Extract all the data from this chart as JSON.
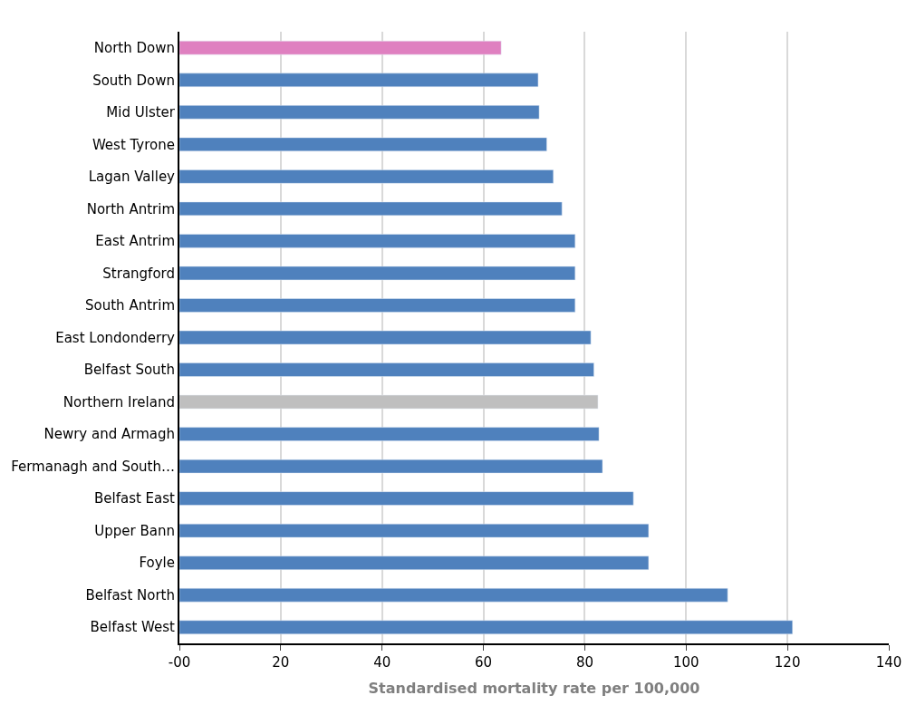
{
  "chart_data": {
    "type": "bar",
    "orientation": "horizontal",
    "xlabel": "Standardised mortality rate per 100,000",
    "categories": [
      "North Down",
      "South Down",
      "Mid Ulster",
      "West Tyrone",
      "Lagan Valley",
      "North Antrim",
      "East Antrim",
      "Strangford",
      "South Antrim",
      "East Londonderry",
      "Belfast South",
      "Northern Ireland",
      "Newry and Armagh",
      "Fermanagh and South…",
      "Belfast East",
      "Upper Bann",
      "Foyle",
      "Belfast North",
      "Belfast West"
    ],
    "values": [
      63.5,
      70.8,
      71.0,
      72.5,
      73.8,
      75.5,
      78.1,
      78.1,
      78.1,
      81.2,
      81.8,
      82.6,
      82.8,
      83.5,
      89.6,
      92.6,
      92.6,
      108.2,
      121.0
    ],
    "colors": [
      "#df80c0",
      "#4f81bd",
      "#4f81bd",
      "#4f81bd",
      "#4f81bd",
      "#4f81bd",
      "#4f81bd",
      "#4f81bd",
      "#4f81bd",
      "#4f81bd",
      "#4f81bd",
      "#bfbfbf",
      "#4f81bd",
      "#4f81bd",
      "#4f81bd",
      "#4f81bd",
      "#4f81bd",
      "#4f81bd",
      "#4f81bd"
    ],
    "xlim": [
      0,
      140
    ],
    "xticks": [
      {
        "value": 0,
        "label": "-00"
      },
      20,
      40,
      60,
      80,
      100,
      120,
      140
    ],
    "grid": "x",
    "legend": false
  }
}
